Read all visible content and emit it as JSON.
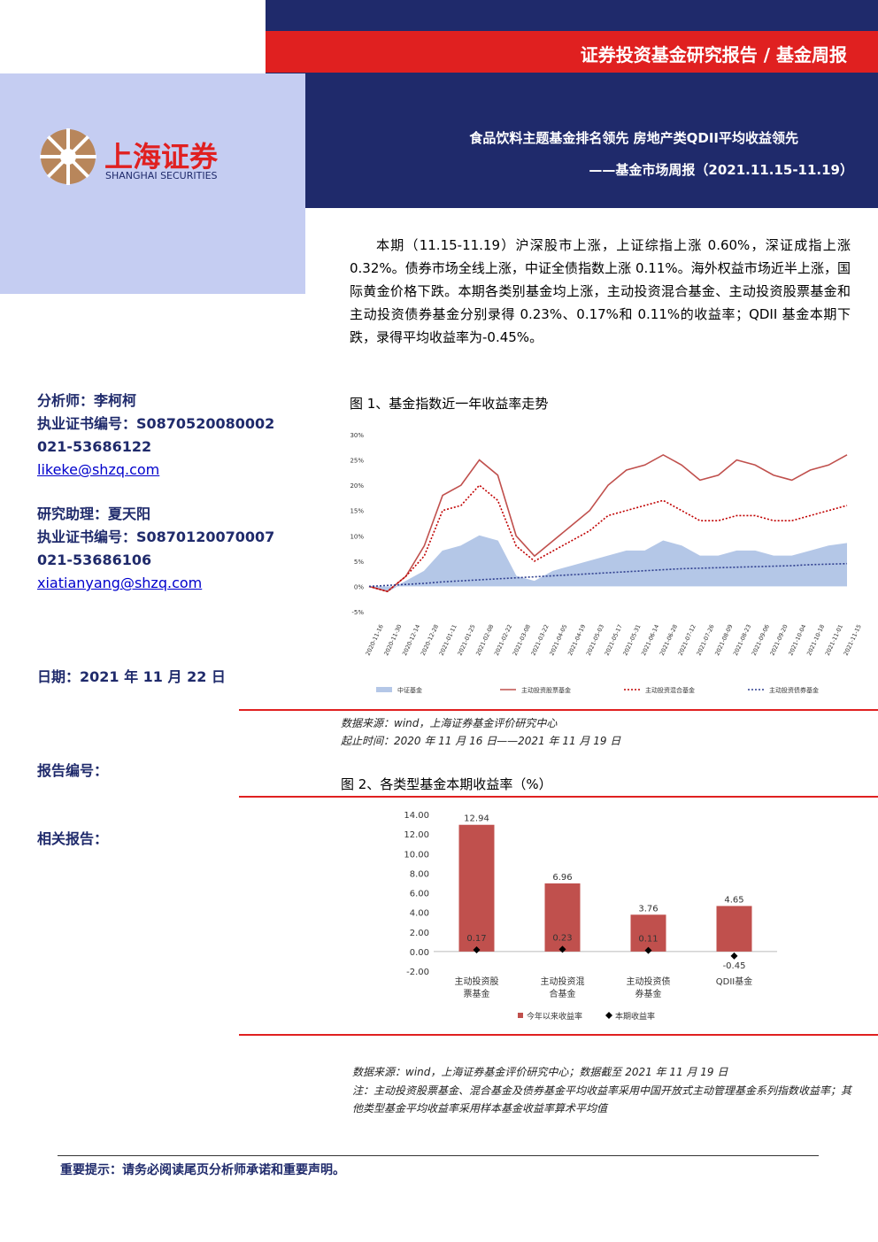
{
  "header": {
    "series_title": "证券投资基金研究报告 / 基金周报",
    "title": "食品饮料主题基金排名领先 房地产类QDII平均收益领先",
    "subtitle": "——基金市场周报（2021.11.15-11.19）"
  },
  "logo": {
    "cn": "上海证券",
    "en": "SHANGHAI SECURITIES"
  },
  "summary": "本期（11.15-11.19）沪深股市上涨，上证综指上涨 0.60%，深证成指上涨 0.32%。债券市场全线上涨，中证全债指数上涨 0.11%。海外权益市场近半上涨，国际黄金价格下跌。本期各类别基金均上涨，主动投资混合基金、主动投资股票基金和主动投资债券基金分别录得 0.23%、0.17%和 0.11%的收益率；QDII 基金本期下跌，录得平均收益率为-0.45%。",
  "contacts": [
    {
      "role": "分析师：李柯柯",
      "cert": "执业证书编号：S0870520080002",
      "phone": "021-53686122",
      "email": "likeke@shzq.com"
    },
    {
      "role": "研究助理：夏天阳",
      "cert": "执业证书编号：S0870120070007",
      "phone": "021-53686106",
      "email": "xiatianyang@shzq.com"
    }
  ],
  "date": "日期：2021 年 11 月 22 日",
  "report_no": "报告编号：",
  "related": "相关报告：",
  "figure1": {
    "caption": "图 1、基金指数近一年收益率走势",
    "source": "数据来源：wind，上海证券基金评价研究中心",
    "period": "起止时间：2020 年 11 月 16 日——2021 年 11 月 19 日"
  },
  "figure2": {
    "caption": "图 2、各类型基金本期收益率（%）",
    "source": "数据来源：wind，上海证券基金评价研究中心；数据截至 2021 年 11 月 19 日",
    "note": "注：主动投资股票基金、混合基金及债券基金平均收益率采用中国开放式主动管理基金系列指数收益率；其他类型基金平均收益率采用样本基金收益率算术平均值"
  },
  "footer": "重要提示：请务必阅读尾页分析师承诺和重要声明。",
  "chart_data": [
    {
      "type": "line",
      "categories": [
        "2020-11-16",
        "2020-11-30",
        "2020-12-14",
        "2020-12-28",
        "2021-01-11",
        "2021-01-25",
        "2021-02-08",
        "2021-02-22",
        "2021-03-08",
        "2021-03-22",
        "2021-04-05",
        "2021-04-19",
        "2021-05-03",
        "2021-05-17",
        "2021-05-31",
        "2021-06-14",
        "2021-06-28",
        "2021-07-12",
        "2021-07-26",
        "2021-08-09",
        "2021-08-23",
        "2021-09-06",
        "2021-09-20",
        "2021-10-04",
        "2021-10-18",
        "2021-11-01",
        "2021-11-15"
      ],
      "ylim": [
        -5,
        30
      ],
      "yticks": [
        {
          "value": -5,
          "label": "-5%"
        },
        {
          "value": 0,
          "label": "0%"
        },
        {
          "value": 5,
          "label": "5%"
        },
        {
          "value": 10,
          "label": "10%"
        },
        {
          "value": 15,
          "label": "15%"
        },
        {
          "value": 20,
          "label": "20%"
        },
        {
          "value": 25,
          "label": "25%"
        },
        {
          "value": 30,
          "label": "30%"
        }
      ],
      "grid": false,
      "series": [
        {
          "name": "中证基金",
          "color": "#b4c7e7",
          "style": "area",
          "values": [
            0,
            -1,
            1,
            3,
            7,
            8,
            10,
            9,
            2,
            1,
            3,
            4,
            5,
            6,
            7,
            7,
            9,
            8,
            6,
            6,
            7,
            7,
            6,
            6,
            7,
            8,
            8.5
          ]
        },
        {
          "name": "主动投资股票基金",
          "color": "#c0504d",
          "style": "solid",
          "values": [
            0,
            -1,
            2,
            8,
            18,
            20,
            25,
            22,
            10,
            6,
            9,
            12,
            15,
            20,
            23,
            24,
            26,
            24,
            21,
            22,
            25,
            24,
            22,
            21,
            23,
            24,
            26
          ]
        },
        {
          "name": "主动投资混合基金",
          "color": "#c00000",
          "style": "dotted",
          "values": [
            0,
            -1,
            2,
            6,
            15,
            16,
            20,
            17,
            8,
            5,
            7,
            9,
            11,
            14,
            15,
            16,
            17,
            15,
            13,
            13,
            14,
            14,
            13,
            13,
            14,
            15,
            16
          ]
        },
        {
          "name": "主动投资债券基金",
          "color": "#2f3f8f",
          "style": "dotted",
          "values": [
            0,
            0.2,
            0.4,
            0.6,
            0.9,
            1.1,
            1.3,
            1.5,
            1.7,
            1.9,
            2.1,
            2.3,
            2.5,
            2.7,
            2.9,
            3.1,
            3.3,
            3.5,
            3.6,
            3.7,
            3.8,
            3.9,
            4.0,
            4.1,
            4.3,
            4.4,
            4.5
          ]
        }
      ]
    },
    {
      "type": "bar",
      "categories": [
        "主动投资股票基金",
        "主动投资混合基金",
        "主动投资债券基金",
        "QDII基金"
      ],
      "ylim": [
        -2,
        14
      ],
      "yticks": [
        {
          "value": -2,
          "label": "-2.00"
        },
        {
          "value": 0,
          "label": "0.00"
        },
        {
          "value": 2,
          "label": "2.00"
        },
        {
          "value": 4,
          "label": "4.00"
        },
        {
          "value": 6,
          "label": "6.00"
        },
        {
          "value": 8,
          "label": "8.00"
        },
        {
          "value": 10,
          "label": "10.00"
        },
        {
          "value": 12,
          "label": "12.00"
        },
        {
          "value": 14,
          "label": "14.00"
        }
      ],
      "series": [
        {
          "name": "今年以来收益率",
          "color": "#c0504d",
          "marker": "bar",
          "values": [
            12.94,
            6.96,
            3.76,
            4.65
          ]
        },
        {
          "name": "本期收益率",
          "color": "#000000",
          "marker": "diamond",
          "values": [
            0.17,
            0.23,
            0.11,
            -0.45
          ]
        }
      ]
    }
  ]
}
